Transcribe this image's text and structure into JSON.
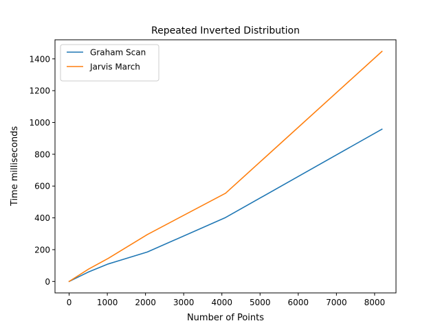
{
  "chart_data": {
    "type": "line",
    "title": "Repeated Inverted Distribution",
    "xlabel": "Number of Points",
    "ylabel": "Time milliseconds",
    "xlim": [
      -370,
      8560
    ],
    "ylim": [
      -72,
      1520
    ],
    "xticks": [
      0,
      1000,
      2000,
      3000,
      4000,
      5000,
      6000,
      7000,
      8000
    ],
    "yticks": [
      0,
      200,
      400,
      600,
      800,
      1000,
      1200,
      1400
    ],
    "grid": false,
    "legend": "top-left",
    "series": [
      {
        "name": "Graham Scan",
        "color": "#1f77b4",
        "x": [
          0,
          512,
          1024,
          2048,
          4096,
          8192
        ],
        "y": [
          0,
          60,
          110,
          185,
          402,
          958
        ]
      },
      {
        "name": "Jarvis March",
        "color": "#ff7f0e",
        "x": [
          0,
          512,
          1024,
          2048,
          4096,
          8192
        ],
        "y": [
          0,
          78,
          145,
          295,
          555,
          1447
        ]
      }
    ]
  }
}
